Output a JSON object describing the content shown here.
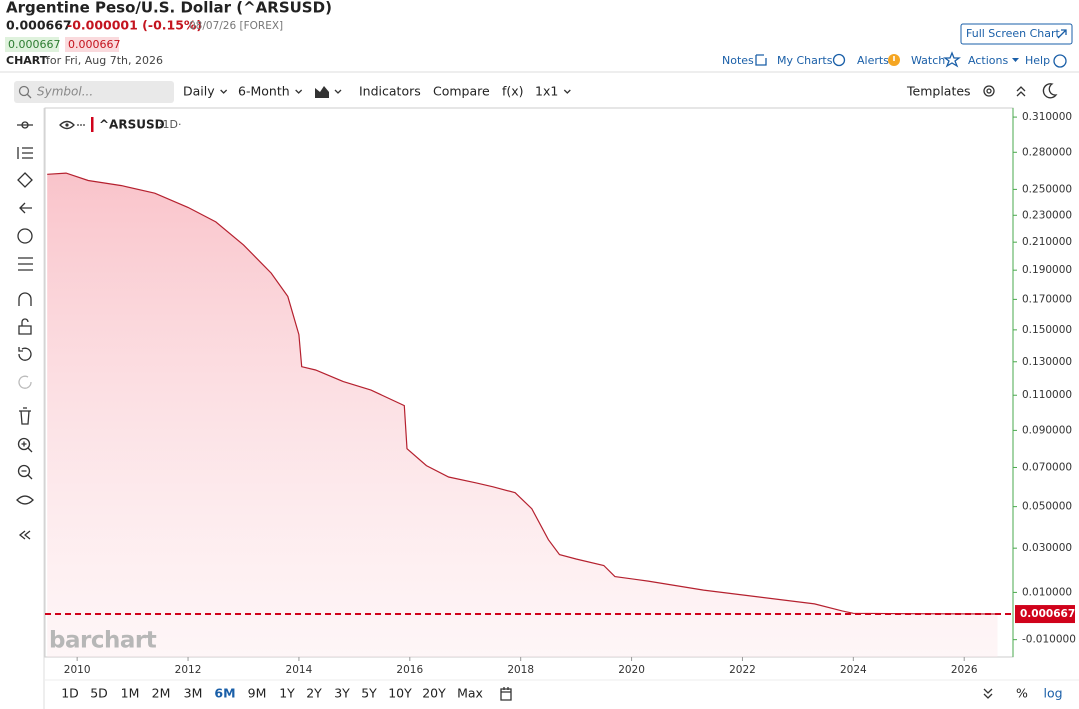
{
  "header": {
    "title": "Argentine Peso/U.S. Dollar (^ARSUSD)",
    "last": "0.000667",
    "change": "-0.000001 (-0.15%)",
    "date": "08/07/26 [FOREX]",
    "bid": "0.000667",
    "ask": "0.000667",
    "chart_label": "CHART",
    "chart_date": "for Fri, Aug 7th, 2026",
    "full_screen": "Full Screen Chart",
    "links": [
      "Notes",
      "My Charts",
      "Alerts",
      "Watch",
      "Actions",
      "Help"
    ]
  },
  "toolbar": {
    "symbol_placeholder": "Symbol...",
    "interval": "Daily",
    "range": "6-Month",
    "indicators": "Indicators",
    "compare": "Compare",
    "fx": "f(x)",
    "layout": "1x1",
    "templates": "Templates"
  },
  "chart_data": {
    "type": "area",
    "legend_interval": "·1D·",
    "watermark": "barchart",
    "x": [
      2009.46,
      2009.8,
      2010.2,
      2010.8,
      2011.4,
      2012.0,
      2012.5,
      2013.0,
      2013.5,
      2013.8,
      2014.0,
      2014.05,
      2014.3,
      2014.8,
      2015.3,
      2015.9,
      2015.95,
      2016.3,
      2016.7,
      2017.2,
      2017.5,
      2017.9,
      2018.2,
      2018.5,
      2018.7,
      2019.0,
      2019.5,
      2019.7,
      2020.3,
      2021.3,
      2022.3,
      2023.3,
      2023.8,
      2024.0,
      2025.0,
      2026.6
    ],
    "series": [
      {
        "name": "^ARSUSD",
        "color": "#b5212f",
        "values": [
          0.262,
          0.263,
          0.257,
          0.253,
          0.247,
          0.236,
          0.225,
          0.208,
          0.188,
          0.172,
          0.147,
          0.127,
          0.125,
          0.118,
          0.113,
          0.104,
          0.08,
          0.071,
          0.065,
          0.062,
          0.06,
          0.057,
          0.049,
          0.034,
          0.027,
          0.025,
          0.022,
          0.017,
          0.015,
          0.011,
          0.008,
          0.005,
          0.002,
          0.001,
          0.0008,
          0.000667
        ]
      }
    ],
    "last_value": 0.000667,
    "last_color": "#d0021b",
    "xlim": [
      2009.42,
      2026.88
    ],
    "xticks": [
      2010,
      2012,
      2014,
      2016,
      2018,
      2020,
      2022,
      2024,
      2026
    ],
    "ylim": [
      -0.017,
      0.318
    ],
    "yticks": [
      {
        "value": 0.31,
        "label": "0.310000"
      },
      {
        "value": 0.28,
        "label": "0.280000"
      },
      {
        "value": 0.25,
        "label": "0.250000"
      },
      {
        "value": 0.23,
        "label": "0.230000"
      },
      {
        "value": 0.21,
        "label": "0.210000"
      },
      {
        "value": 0.19,
        "label": "0.190000"
      },
      {
        "value": 0.17,
        "label": "0.170000"
      },
      {
        "value": 0.15,
        "label": "0.150000"
      },
      {
        "value": 0.13,
        "label": "0.130000"
      },
      {
        "value": 0.11,
        "label": "0.110000"
      },
      {
        "value": 0.09,
        "label": "0.090000"
      },
      {
        "value": 0.07,
        "label": "0.070000"
      },
      {
        "value": 0.05,
        "label": "0.050000"
      },
      {
        "value": 0.03,
        "label": "0.030000"
      },
      {
        "value": 0.01,
        "label": "0.010000"
      },
      {
        "value": -0.01,
        "label": "-0.010000"
      }
    ]
  },
  "footer": {
    "periods": [
      "1D",
      "5D",
      "1M",
      "2M",
      "3M",
      "6M",
      "9M",
      "1Y",
      "2Y",
      "3Y",
      "5Y",
      "10Y",
      "20Y",
      "Max"
    ],
    "active_period_index": 5,
    "percent": "%",
    "log": "log"
  }
}
